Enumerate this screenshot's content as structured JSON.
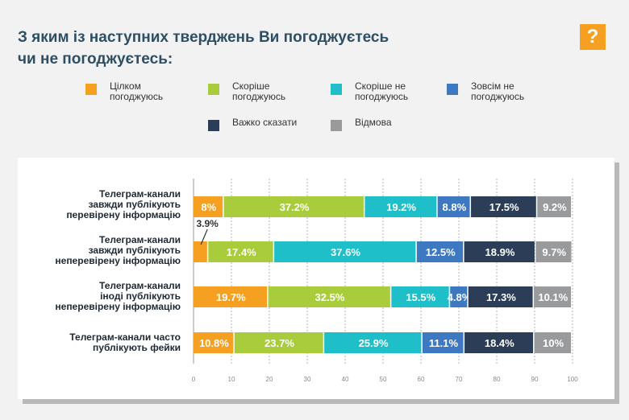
{
  "title": "З яким із наступних тверджень Ви погоджуєтесь\nчи не погоджуєтесь:",
  "badge": "?",
  "legend": [
    {
      "label": "Цілком\nпогоджуюсь",
      "color": "#f5a020"
    },
    {
      "label": "Скоріше\nпогоджуюсь",
      "color": "#a8cc3c"
    },
    {
      "label": "Скоріше не\nпогоджуюсь",
      "color": "#1fbfca"
    },
    {
      "label": "Зовсім не\nпогоджуюсь",
      "color": "#3d78c1"
    },
    {
      "label": "Важко сказати",
      "color": "#2c3e57"
    },
    {
      "label": "Відмова",
      "color": "#999a9c"
    }
  ],
  "chart_data": {
    "type": "bar",
    "orientation": "horizontal",
    "stacked": true,
    "categories": [
      "Телеграм-канали\nзавжди публікують\nперевірену інформацію",
      "Телеграм-канали\nзавжди публікують\nнеперевірену інформацію",
      "Телеграм-канали\nіноді публікують\nнеперевірену інформацію",
      "Телеграм-канали часто\nпублікують фейки"
    ],
    "series": [
      {
        "name": "Цілком погоджуюсь",
        "color": "#f5a020",
        "values": [
          8,
          3.9,
          19.7,
          10.8
        ]
      },
      {
        "name": "Скоріше погоджуюсь",
        "color": "#a8cc3c",
        "values": [
          37.2,
          17.4,
          32.5,
          23.7
        ]
      },
      {
        "name": "Скоріше не погоджуюсь",
        "color": "#1fbfca",
        "values": [
          19.2,
          37.6,
          15.5,
          25.9
        ]
      },
      {
        "name": "Зовсім не погоджуюсь",
        "color": "#3d78c1",
        "values": [
          8.8,
          12.5,
          4.8,
          11.1
        ]
      },
      {
        "name": "Важко сказати",
        "color": "#2c3e57",
        "values": [
          17.5,
          18.9,
          17.3,
          18.4
        ]
      },
      {
        "name": "Відмова",
        "color": "#999a9c",
        "values": [
          9.2,
          9.7,
          10.1,
          10
        ]
      }
    ],
    "labels": [
      [
        "8%",
        "37.2%",
        "19.2%",
        "8.8%",
        "17.5%",
        "9.2%"
      ],
      [
        "3.9%",
        "17.4%",
        "37.6%",
        "12.5%",
        "18.9%",
        "9.7%"
      ],
      [
        "19.7%",
        "32.5%",
        "15.5%",
        "4.8%",
        "17.3%",
        "10.1%"
      ],
      [
        "10.8%",
        "23.7%",
        "25.9%",
        "11.1%",
        "18.4%",
        "10%"
      ]
    ],
    "xlim": [
      0,
      100
    ],
    "xticks": [
      0,
      10,
      20,
      30,
      40,
      50,
      60,
      70,
      80,
      90,
      100
    ],
    "grid": true
  }
}
